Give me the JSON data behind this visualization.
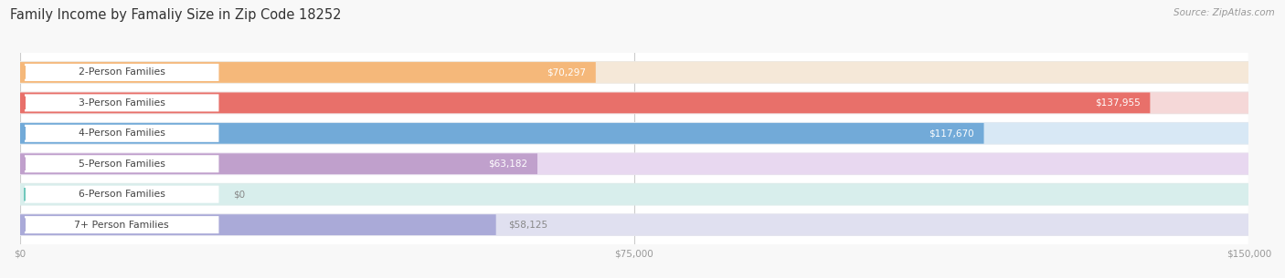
{
  "title": "Family Income by Famaliy Size in Zip Code 18252",
  "source": "Source: ZipAtlas.com",
  "categories": [
    "2-Person Families",
    "3-Person Families",
    "4-Person Families",
    "5-Person Families",
    "6-Person Families",
    "7+ Person Families"
  ],
  "values": [
    70297,
    137955,
    117670,
    63182,
    0,
    58125
  ],
  "value_labels": [
    "$70,297",
    "$137,955",
    "$117,670",
    "$63,182",
    "$0",
    "$58,125"
  ],
  "bar_colors": [
    "#F5B87A",
    "#E8706A",
    "#72AAD8",
    "#C0A0CC",
    "#70C8BC",
    "#AAAAD8"
  ],
  "bar_bg_colors": [
    "#F5E8D8",
    "#F5D8D8",
    "#D8E8F5",
    "#E8D8F0",
    "#D8EEEC",
    "#E0E0F0"
  ],
  "outer_bg_colors": [
    "#EDE8E0",
    "#EDE0E0",
    "#E0E8F0",
    "#E8E0EE",
    "#DCECEA",
    "#E4E4EE"
  ],
  "xmax": 150000,
  "xticks": [
    0,
    75000,
    150000
  ],
  "xtick_labels": [
    "$0",
    "$75,000",
    "$150,000"
  ],
  "background_color": "#f8f8f8",
  "plot_bg_color": "#ffffff",
  "title_fontsize": 10.5,
  "label_fontsize": 7.8,
  "value_fontsize": 7.5,
  "source_fontsize": 7.5
}
